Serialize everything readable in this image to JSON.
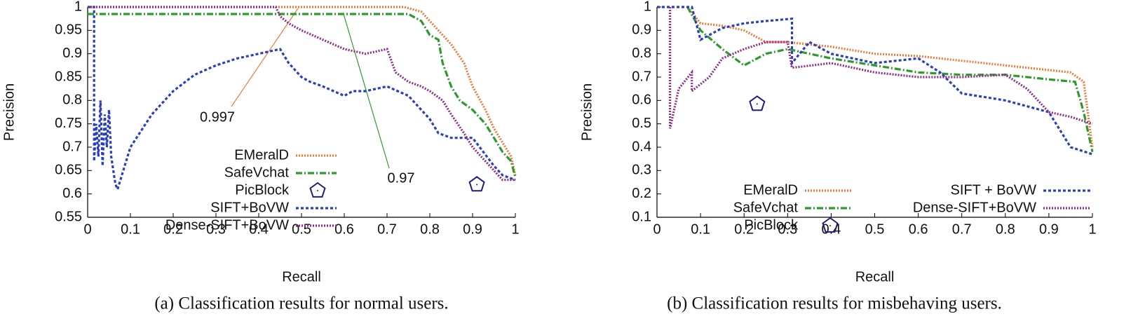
{
  "chart_data": [
    {
      "type": "line",
      "caption": "(a) Classification results for normal users.",
      "x_label": "Recall",
      "y_label": "Precision",
      "xlim": [
        0,
        1
      ],
      "ylim": [
        0.55,
        1
      ],
      "xticks": [
        0,
        0.1,
        0.2,
        0.3,
        0.4,
        0.5,
        0.6,
        0.7,
        0.8,
        0.9,
        1
      ],
      "yticks": [
        0.55,
        0.6,
        0.65,
        0.7,
        0.75,
        0.8,
        0.85,
        0.9,
        0.95,
        1
      ],
      "legend": "lower center",
      "legend_columns": 1,
      "annotations": [
        "0.997",
        "0.97"
      ],
      "series": [
        {
          "name": "EMeralD",
          "color": "#ee7a3a",
          "style": "dotted",
          "x": [
            0,
            0.45,
            0.5,
            0.74,
            0.78,
            0.8,
            0.82,
            0.85,
            0.88,
            0.9,
            0.93,
            0.95,
            0.97,
            0.99,
            1
          ],
          "values": [
            1,
            1,
            1,
            1,
            0.99,
            0.97,
            0.95,
            0.92,
            0.88,
            0.83,
            0.78,
            0.74,
            0.71,
            0.68,
            0.64
          ]
        },
        {
          "name": "SafeVchat",
          "color": "#2e9a2e",
          "style": "dash-dot",
          "x": [
            0,
            0.75,
            0.78,
            0.8,
            0.82,
            0.83,
            0.85,
            0.87,
            0.9,
            0.93,
            0.95,
            0.97,
            0.99,
            1
          ],
          "values": [
            0.985,
            0.985,
            0.97,
            0.94,
            0.93,
            0.88,
            0.83,
            0.8,
            0.78,
            0.75,
            0.72,
            0.69,
            0.67,
            0.635
          ]
        },
        {
          "name": "PicBlock",
          "color": "#1f1f7a",
          "style": "marker",
          "marker": "pentagon",
          "x": [
            0.91
          ],
          "values": [
            0.62
          ]
        },
        {
          "name": "SIFT+BoVW",
          "color": "#2a3fbf",
          "style": "dashed",
          "x": [
            0,
            0.015,
            0.015,
            0.02,
            0.025,
            0.03,
            0.035,
            0.04,
            0.045,
            0.05,
            0.055,
            0.06,
            0.065,
            0.07,
            0.1,
            0.15,
            0.2,
            0.25,
            0.3,
            0.35,
            0.4,
            0.45,
            0.47,
            0.5,
            0.52,
            0.55,
            0.6,
            0.62,
            0.65,
            0.7,
            0.75,
            0.8,
            0.82,
            0.85,
            0.9,
            0.95,
            0.97,
            1
          ],
          "values": [
            1,
            1,
            0.67,
            0.75,
            0.68,
            0.8,
            0.66,
            0.77,
            0.7,
            0.78,
            0.68,
            0.65,
            0.62,
            0.61,
            0.7,
            0.77,
            0.82,
            0.855,
            0.875,
            0.89,
            0.9,
            0.91,
            0.88,
            0.85,
            0.84,
            0.83,
            0.81,
            0.82,
            0.82,
            0.83,
            0.81,
            0.76,
            0.73,
            0.72,
            0.72,
            0.66,
            0.64,
            0.63
          ]
        },
        {
          "name": "Dense-SIFT+BoVW",
          "color": "#8e2c8e",
          "style": "dotted",
          "x": [
            0,
            0.44,
            0.45,
            0.47,
            0.5,
            0.55,
            0.6,
            0.65,
            0.7,
            0.72,
            0.75,
            0.78,
            0.8,
            0.83,
            0.85,
            0.88,
            0.9,
            0.93,
            0.95,
            0.97,
            1
          ],
          "values": [
            1,
            1,
            0.98,
            0.965,
            0.95,
            0.93,
            0.91,
            0.9,
            0.91,
            0.86,
            0.84,
            0.83,
            0.82,
            0.8,
            0.77,
            0.73,
            0.7,
            0.67,
            0.65,
            0.63,
            0.63
          ]
        }
      ]
    },
    {
      "type": "line",
      "caption": "(b) Classification results for misbehaving users.",
      "x_label": "Recall",
      "y_label": "Precision",
      "xlim": [
        0,
        1
      ],
      "ylim": [
        0.1,
        1
      ],
      "xticks": [
        0,
        0.1,
        0.2,
        0.3,
        0.4,
        0.5,
        0.6,
        0.7,
        0.8,
        0.9,
        1
      ],
      "yticks": [
        0.1,
        0.2,
        0.3,
        0.4,
        0.5,
        0.6,
        0.7,
        0.8,
        0.9,
        1
      ],
      "legend": "lower center",
      "legend_columns": 2,
      "series": [
        {
          "name": "EMeralD",
          "color": "#ee7a3a",
          "style": "dotted",
          "x": [
            0.07,
            0.1,
            0.15,
            0.2,
            0.25,
            0.3,
            0.4,
            0.5,
            0.6,
            0.7,
            0.8,
            0.9,
            0.95,
            0.98,
            1
          ],
          "values": [
            1,
            0.93,
            0.92,
            0.9,
            0.85,
            0.85,
            0.83,
            0.8,
            0.79,
            0.77,
            0.75,
            0.73,
            0.72,
            0.68,
            0.4
          ]
        },
        {
          "name": "SafeVchat",
          "color": "#2e9a2e",
          "style": "dash-dot",
          "x": [
            0.07,
            0.1,
            0.15,
            0.2,
            0.25,
            0.3,
            0.4,
            0.5,
            0.6,
            0.7,
            0.8,
            0.9,
            0.96,
            0.98,
            1
          ],
          "values": [
            1,
            0.9,
            0.82,
            0.75,
            0.8,
            0.82,
            0.78,
            0.75,
            0.72,
            0.71,
            0.71,
            0.69,
            0.68,
            0.55,
            0.38
          ]
        },
        {
          "name": "PicBlock",
          "color": "#1f1f7a",
          "style": "marker",
          "marker": "pentagon",
          "x": [
            0.23
          ],
          "values": [
            0.585
          ]
        },
        {
          "name": "SIFT + BoVW",
          "color": "#2a3fbf",
          "style": "dashed",
          "x": [
            0,
            0.08,
            0.1,
            0.15,
            0.2,
            0.25,
            0.31,
            0.31,
            0.35,
            0.4,
            0.5,
            0.6,
            0.65,
            0.7,
            0.8,
            0.9,
            0.95,
            1
          ],
          "values": [
            1,
            1,
            0.86,
            0.91,
            0.93,
            0.94,
            0.95,
            0.76,
            0.85,
            0.8,
            0.76,
            0.78,
            0.72,
            0.63,
            0.6,
            0.55,
            0.4,
            0.37
          ]
        },
        {
          "name": "Dense-SIFT+BoVW",
          "color": "#8e2c8e",
          "style": "dotted",
          "x": [
            0.03,
            0.03,
            0.05,
            0.08,
            0.08,
            0.12,
            0.15,
            0.2,
            0.25,
            0.3,
            0.31,
            0.4,
            0.5,
            0.6,
            0.7,
            0.8,
            0.85,
            0.9,
            0.95,
            1
          ],
          "values": [
            1,
            0.48,
            0.65,
            0.72,
            0.64,
            0.7,
            0.78,
            0.82,
            0.85,
            0.85,
            0.74,
            0.76,
            0.72,
            0.7,
            0.7,
            0.71,
            0.65,
            0.55,
            0.53,
            0.5
          ]
        }
      ]
    }
  ]
}
